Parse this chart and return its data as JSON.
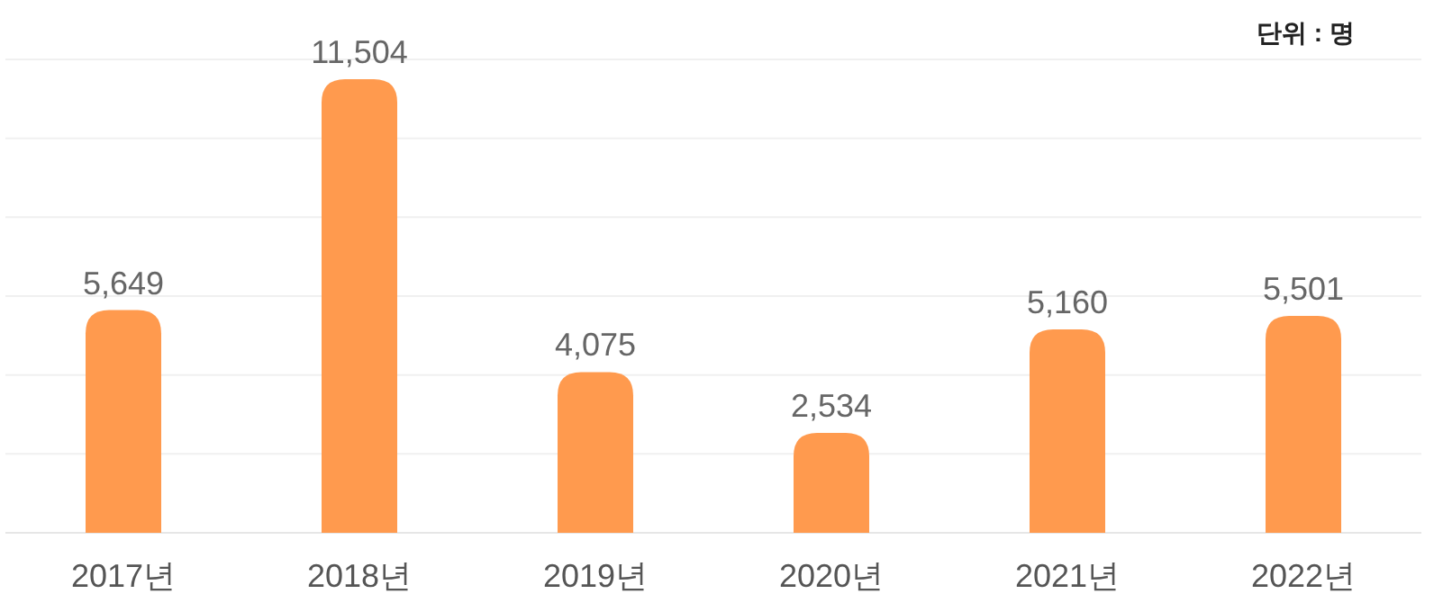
{
  "chart_data": {
    "type": "bar",
    "annotations": [
      "단위 : 명"
    ],
    "categories": [
      "2017년",
      "2018년",
      "2019년",
      "2020년",
      "2021년",
      "2022년"
    ],
    "values": [
      5649,
      11504,
      4075,
      2534,
      5160,
      5501
    ],
    "value_labels": [
      "5,649",
      "11,504",
      "4,075",
      "2,534",
      "5,160",
      "5,501"
    ],
    "color": "#ff9a4e",
    "tick_labels": "x",
    "grid": "y"
  }
}
